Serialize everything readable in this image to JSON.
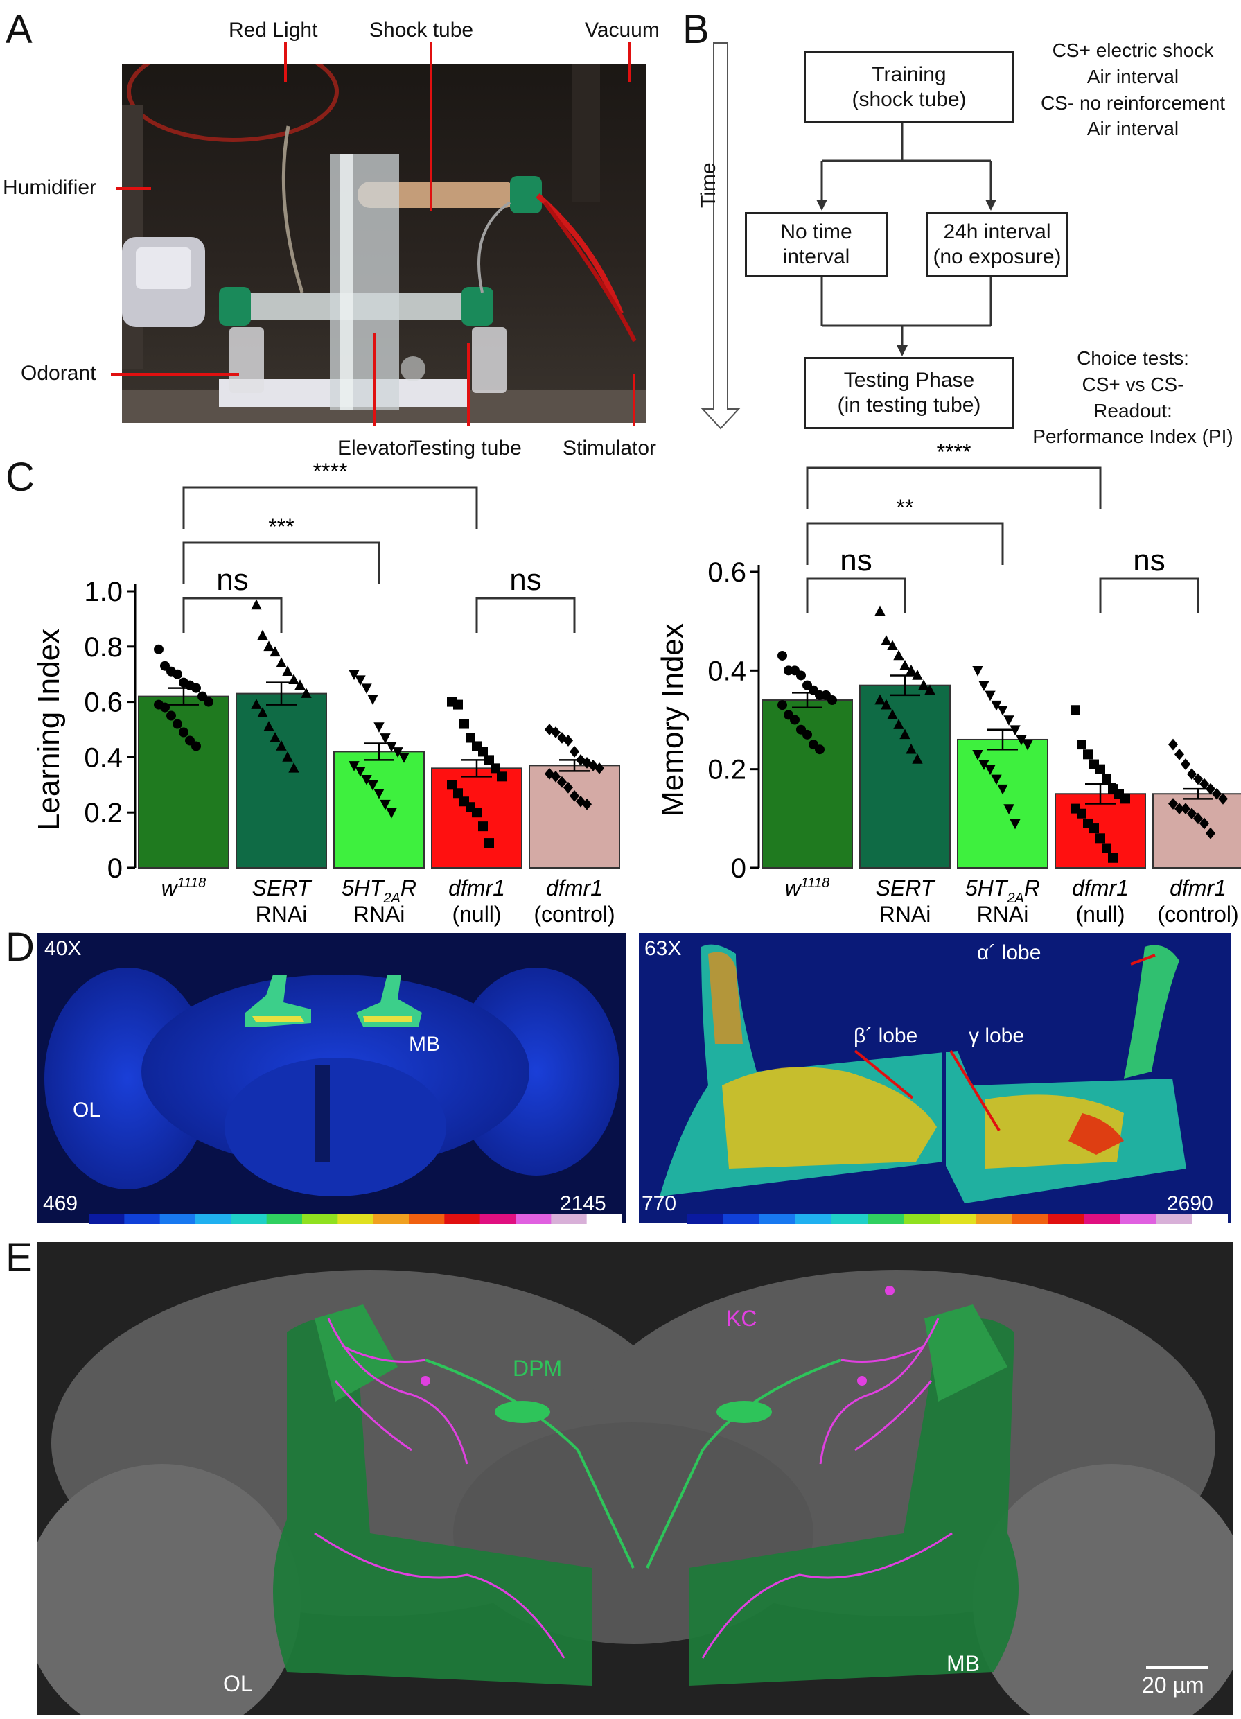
{
  "panel_letters": {
    "a": "A",
    "b": "B",
    "c": "C",
    "d": "D",
    "e": "E"
  },
  "panelA": {
    "labels": {
      "red_light": "Red Light",
      "shock_tube": "Shock tube",
      "vacuum": "Vacuum",
      "humidifier": "Humidifier",
      "odorant": "Odorant",
      "elevator": "Elevator",
      "testing_tube": "Testing tube",
      "stimulator": "Stimulator"
    }
  },
  "panelB": {
    "time_label": "Time",
    "training_box": "Training\n(shock tube)",
    "no_time_box": "No time\ninterval",
    "interval_box": "24h interval\n(no exposure)",
    "testing_box": "Testing Phase\n(in testing tube)",
    "training_notes": "CS+ electric shock\nAir interval\nCS- no reinforcement\nAir interval",
    "testing_notes": "Choice tests:\nCS+ vs CS-\nReadout:\nPerformance Index (PI)"
  },
  "chart_data": [
    {
      "type": "bar",
      "ylabel": "Learning Index",
      "ylim": [
        0,
        1.0
      ],
      "yticks": [
        "0",
        "0.2",
        "0.4",
        "0.6",
        "0.8",
        "1.0"
      ],
      "ytick_values": [
        0,
        0.2,
        0.4,
        0.6,
        0.8,
        1.0
      ],
      "categories": [
        "w1118",
        "SERT RNAi",
        "5HT2AR RNAi",
        "dfmr1 (null)",
        "dfmr1 (control)"
      ],
      "category_labels": [
        {
          "main": "w",
          "sup": "1118",
          "sub": "",
          "rest": "",
          "line2": ""
        },
        {
          "main": "SERT",
          "sup": "",
          "sub": "",
          "rest": "",
          "line2": "RNAi"
        },
        {
          "main": "5HT",
          "sup": "",
          "sub": "2A",
          "rest": "R",
          "line2": "RNAi"
        },
        {
          "main": "dfmr1",
          "sup": "",
          "sub": "",
          "rest": "",
          "line2": "(null)"
        },
        {
          "main": "dfmr1",
          "sup": "",
          "sub": "",
          "rest": "",
          "line2": "(control)"
        }
      ],
      "values": [
        0.62,
        0.63,
        0.42,
        0.36,
        0.37
      ],
      "sem": [
        0.03,
        0.04,
        0.03,
        0.03,
        0.02
      ],
      "colors": [
        "#1f7a1f",
        "#0f6b45",
        "#3ef03e",
        "#ff1010",
        "#d4aaa5"
      ],
      "markers": [
        "circle",
        "triangle-up",
        "triangle-down",
        "square",
        "diamond"
      ],
      "points": [
        [
          0.79,
          0.73,
          0.71,
          0.7,
          0.67,
          0.66,
          0.65,
          0.62,
          0.6,
          0.59,
          0.58,
          0.55,
          0.52,
          0.49,
          0.46,
          0.44
        ],
        [
          0.95,
          0.84,
          0.8,
          0.78,
          0.74,
          0.71,
          0.68,
          0.66,
          0.63,
          0.59,
          0.56,
          0.51,
          0.47,
          0.44,
          0.4,
          0.36
        ],
        [
          0.7,
          0.68,
          0.65,
          0.61,
          0.51,
          0.47,
          0.44,
          0.42,
          0.4,
          0.37,
          0.35,
          0.32,
          0.3,
          0.27,
          0.23,
          0.2
        ],
        [
          0.6,
          0.59,
          0.52,
          0.47,
          0.44,
          0.42,
          0.39,
          0.36,
          0.33,
          0.3,
          0.27,
          0.24,
          0.22,
          0.2,
          0.15,
          0.09
        ],
        [
          0.5,
          0.49,
          0.47,
          0.46,
          0.42,
          0.39,
          0.38,
          0.37,
          0.36,
          0.34,
          0.33,
          0.31,
          0.29,
          0.26,
          0.24,
          0.23
        ]
      ],
      "significance": [
        {
          "from": 0,
          "to": 1,
          "label": "ns"
        },
        {
          "from": 0,
          "to": 2,
          "label": "***"
        },
        {
          "from": 0,
          "to": 3,
          "label": "****"
        },
        {
          "from": 3,
          "to": 4,
          "label": "ns"
        }
      ]
    },
    {
      "type": "bar",
      "ylabel": "Memory Index",
      "ylim": [
        0,
        0.6
      ],
      "yticks": [
        "0",
        "0.2",
        "0.4",
        "0.6"
      ],
      "ytick_values": [
        0,
        0.2,
        0.4,
        0.6
      ],
      "categories": [
        "w1118",
        "SERT RNAi",
        "5HT2AR RNAi",
        "dfmr1 (null)",
        "dfmr1 (control)"
      ],
      "category_labels": [
        {
          "main": "w",
          "sup": "1118",
          "sub": "",
          "rest": "",
          "line2": ""
        },
        {
          "main": "SERT",
          "sup": "",
          "sub": "",
          "rest": "",
          "line2": "RNAi"
        },
        {
          "main": "5HT",
          "sup": "",
          "sub": "2A",
          "rest": "R",
          "line2": "RNAi"
        },
        {
          "main": "dfmr1",
          "sup": "",
          "sub": "",
          "rest": "",
          "line2": "(null)"
        },
        {
          "main": "dfmr1",
          "sup": "",
          "sub": "",
          "rest": "",
          "line2": "(control)"
        }
      ],
      "values": [
        0.34,
        0.37,
        0.26,
        0.15,
        0.15
      ],
      "sem": [
        0.015,
        0.02,
        0.02,
        0.02,
        0.01
      ],
      "colors": [
        "#1f7a1f",
        "#0f6b45",
        "#3ef03e",
        "#ff1010",
        "#d4aaa5"
      ],
      "markers": [
        "circle",
        "triangle-up",
        "triangle-down",
        "square",
        "diamond"
      ],
      "points": [
        [
          0.43,
          0.4,
          0.4,
          0.39,
          0.37,
          0.36,
          0.35,
          0.35,
          0.34,
          0.33,
          0.31,
          0.3,
          0.28,
          0.27,
          0.25,
          0.24
        ],
        [
          0.52,
          0.46,
          0.45,
          0.43,
          0.41,
          0.4,
          0.39,
          0.37,
          0.36,
          0.34,
          0.33,
          0.31,
          0.29,
          0.27,
          0.24,
          0.22
        ],
        [
          0.4,
          0.37,
          0.35,
          0.33,
          0.32,
          0.3,
          0.28,
          0.26,
          0.25,
          0.23,
          0.21,
          0.2,
          0.18,
          0.16,
          0.12,
          0.09
        ],
        [
          0.32,
          0.25,
          0.23,
          0.21,
          0.2,
          0.18,
          0.16,
          0.15,
          0.14,
          0.12,
          0.11,
          0.09,
          0.08,
          0.06,
          0.04,
          0.02
        ],
        [
          0.25,
          0.23,
          0.21,
          0.19,
          0.18,
          0.17,
          0.16,
          0.15,
          0.14,
          0.13,
          0.12,
          0.12,
          0.11,
          0.1,
          0.09,
          0.07
        ]
      ],
      "significance": [
        {
          "from": 0,
          "to": 1,
          "label": "ns"
        },
        {
          "from": 0,
          "to": 2,
          "label": "**"
        },
        {
          "from": 0,
          "to": 3,
          "label": "****"
        },
        {
          "from": 3,
          "to": 4,
          "label": "ns"
        }
      ]
    }
  ],
  "panelD": {
    "left": {
      "mag": "40X",
      "min": "469",
      "max": "2145",
      "mb": "MB",
      "ol": "OL"
    },
    "right": {
      "mag": "63X",
      "min": "770",
      "max": "2690",
      "alpha": "α´ lobe",
      "beta": "β´ lobe",
      "gamma": "γ lobe"
    },
    "colorbar": [
      "#0a1aa0",
      "#1040d8",
      "#1878f0",
      "#20b0f0",
      "#20d0c8",
      "#30d060",
      "#90e020",
      "#e0e020",
      "#f0a020",
      "#f06010",
      "#e01010",
      "#e01080",
      "#e060e0",
      "#d8b0d8",
      "#ffffff"
    ]
  },
  "panelE": {
    "kc": "KC",
    "dpm": "DPM",
    "ol": "OL",
    "mb": "MB",
    "scale": "20 µm",
    "kc_color": "#e040e0",
    "dpm_color": "#2ec45a"
  }
}
